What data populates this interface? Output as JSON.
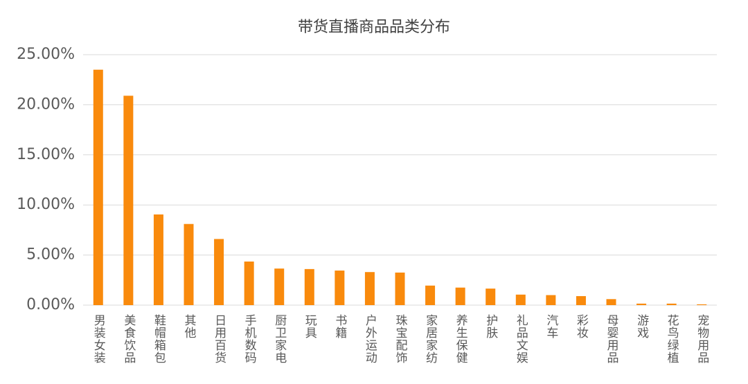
{
  "chart_data": {
    "type": "bar",
    "title": "带货直播商品品类分布",
    "categories": [
      "男装女装",
      "美食饮品",
      "鞋帽箱包",
      "其他",
      "日用百货",
      "手机数码",
      "厨卫家电",
      "玩具",
      "书籍",
      "户外运动",
      "珠宝配饰",
      "家居家纺",
      "养生保健",
      "护肤",
      "礼品文娱",
      "汽车",
      "彩妆",
      "母婴用品",
      "游戏",
      "花鸟绿植",
      "宠物用品"
    ],
    "values": [
      23.5,
      20.9,
      9.05,
      8.1,
      6.6,
      4.35,
      3.65,
      3.6,
      3.45,
      3.3,
      3.25,
      1.95,
      1.75,
      1.65,
      1.05,
      1.0,
      0.9,
      0.6,
      0.15,
      0.15,
      0.08
    ],
    "color": "#f98a0c",
    "ylim": [
      0,
      25
    ],
    "yticks": [
      {
        "value": 0,
        "label": "0.00%"
      },
      {
        "value": 5,
        "label": "5.00%"
      },
      {
        "value": 10,
        "label": "10.00%"
      },
      {
        "value": 15,
        "label": "15.00%"
      },
      {
        "value": 20,
        "label": "20.00%"
      },
      {
        "value": 25,
        "label": "25.00%"
      }
    ],
    "grid": true
  }
}
